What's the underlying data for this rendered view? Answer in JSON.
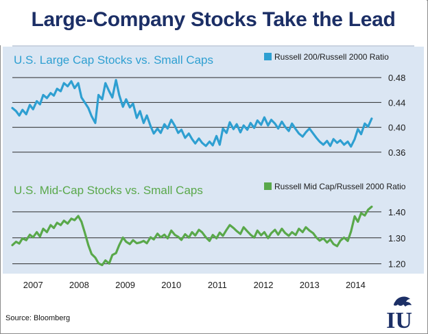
{
  "title": "Large-Company Stocks Take the Lead",
  "source": "Source: Bloomberg",
  "logo": "IU",
  "colors": {
    "title": "#1c2f66",
    "series_top": "#2e9fd1",
    "series_bottom": "#59a84a",
    "panel_bg": "#dbe6f3",
    "gridline": "#2a2a2a"
  },
  "chart_data": [
    {
      "type": "line",
      "title": "U.S. Large Cap Stocks vs. Small Caps",
      "legend": "Russell 200/Russell 2000 Ratio",
      "legend_position": "top-right",
      "x_tick_labels": [
        "2007",
        "2008",
        "2009",
        "2010",
        "2011",
        "2012",
        "2013",
        "2014"
      ],
      "x_range": [
        2006.55,
        2014.5
      ],
      "ylim": [
        0.34,
        0.49
      ],
      "y_ticks": [
        0.36,
        0.4,
        0.44,
        0.48
      ],
      "y_tick_labels": [
        "0.36",
        "0.40",
        "0.44",
        "0.48"
      ],
      "grid": "horizontal",
      "series": [
        {
          "x": [
            2006.55,
            2006.63,
            2006.7,
            2006.77,
            2006.85,
            2006.93,
            2007.0,
            2007.08,
            2007.15,
            2007.22,
            2007.3,
            2007.38,
            2007.45,
            2007.52,
            2007.6,
            2007.67,
            2007.75,
            2007.83,
            2007.9,
            2007.98,
            2008.05,
            2008.12,
            2008.2,
            2008.27,
            2008.35,
            2008.42,
            2008.5,
            2008.57,
            2008.65,
            2008.72,
            2008.8,
            2008.87,
            2008.95,
            2009.02,
            2009.1,
            2009.17,
            2009.25,
            2009.32,
            2009.4,
            2009.47,
            2009.55,
            2009.62,
            2009.7,
            2009.77,
            2009.85,
            2009.92,
            2010.0,
            2010.08,
            2010.15,
            2010.22,
            2010.3,
            2010.38,
            2010.45,
            2010.52,
            2010.6,
            2010.67,
            2010.75,
            2010.83,
            2010.9,
            2010.98,
            2011.05,
            2011.12,
            2011.2,
            2011.27,
            2011.35,
            2011.42,
            2011.5,
            2011.57,
            2011.65,
            2011.72,
            2011.8,
            2011.87,
            2011.95,
            2012.02,
            2012.1,
            2012.17,
            2012.25,
            2012.32,
            2012.4,
            2012.47,
            2012.55,
            2012.62,
            2012.7,
            2012.77,
            2012.85,
            2012.92,
            2013.0,
            2013.08,
            2013.15,
            2013.22,
            2013.3,
            2013.38,
            2013.45,
            2013.52,
            2013.6,
            2013.67,
            2013.75,
            2013.83,
            2013.9,
            2013.98,
            2014.05,
            2014.12,
            2014.2,
            2014.27,
            2014.35
          ],
          "values": [
            0.431,
            0.426,
            0.419,
            0.428,
            0.421,
            0.436,
            0.429,
            0.442,
            0.437,
            0.452,
            0.447,
            0.455,
            0.451,
            0.462,
            0.458,
            0.471,
            0.466,
            0.474,
            0.463,
            0.471,
            0.448,
            0.44,
            0.431,
            0.418,
            0.407,
            0.452,
            0.445,
            0.471,
            0.458,
            0.448,
            0.476,
            0.452,
            0.433,
            0.445,
            0.432,
            0.438,
            0.415,
            0.426,
            0.407,
            0.419,
            0.402,
            0.39,
            0.398,
            0.391,
            0.405,
            0.398,
            0.412,
            0.402,
            0.391,
            0.396,
            0.383,
            0.39,
            0.381,
            0.374,
            0.382,
            0.375,
            0.37,
            0.377,
            0.371,
            0.386,
            0.372,
            0.398,
            0.391,
            0.408,
            0.397,
            0.405,
            0.392,
            0.403,
            0.396,
            0.407,
            0.399,
            0.411,
            0.404,
            0.416,
            0.403,
            0.412,
            0.406,
            0.398,
            0.409,
            0.401,
            0.394,
            0.406,
            0.397,
            0.39,
            0.385,
            0.392,
            0.398,
            0.39,
            0.383,
            0.377,
            0.372,
            0.378,
            0.37,
            0.381,
            0.375,
            0.379,
            0.372,
            0.377,
            0.369,
            0.381,
            0.397,
            0.389,
            0.406,
            0.401,
            0.414
          ]
        }
      ]
    },
    {
      "type": "line",
      "title": "U.S. Mid-Cap Stocks vs. Small Caps",
      "legend": "Russell Mid Cap/Russell 2000 Ratio",
      "legend_position": "top-right",
      "x_tick_labels": [
        "2007",
        "2008",
        "2009",
        "2010",
        "2011",
        "2012",
        "2013",
        "2014"
      ],
      "x_range": [
        2006.55,
        2014.5
      ],
      "ylim": [
        1.17,
        1.45
      ],
      "y_ticks": [
        1.2,
        1.3,
        1.4
      ],
      "y_tick_labels": [
        "1.20",
        "1.30",
        "1.40"
      ],
      "grid": "horizontal",
      "series": [
        {
          "x": [
            2006.55,
            2006.63,
            2006.7,
            2006.77,
            2006.85,
            2006.93,
            2007.0,
            2007.08,
            2007.15,
            2007.22,
            2007.3,
            2007.38,
            2007.45,
            2007.52,
            2007.6,
            2007.67,
            2007.75,
            2007.83,
            2007.9,
            2007.98,
            2008.05,
            2008.12,
            2008.2,
            2008.27,
            2008.35,
            2008.42,
            2008.5,
            2008.57,
            2008.65,
            2008.72,
            2008.8,
            2008.87,
            2008.95,
            2009.02,
            2009.1,
            2009.17,
            2009.25,
            2009.32,
            2009.4,
            2009.47,
            2009.55,
            2009.62,
            2009.7,
            2009.77,
            2009.85,
            2009.92,
            2010.0,
            2010.08,
            2010.15,
            2010.22,
            2010.3,
            2010.38,
            2010.45,
            2010.52,
            2010.6,
            2010.67,
            2010.75,
            2010.83,
            2010.9,
            2010.98,
            2011.05,
            2011.12,
            2011.2,
            2011.27,
            2011.35,
            2011.42,
            2011.5,
            2011.57,
            2011.65,
            2011.72,
            2011.8,
            2011.87,
            2011.95,
            2012.02,
            2012.1,
            2012.17,
            2012.25,
            2012.32,
            2012.4,
            2012.47,
            2012.55,
            2012.62,
            2012.7,
            2012.77,
            2012.85,
            2012.92,
            2013.0,
            2013.08,
            2013.15,
            2013.22,
            2013.3,
            2013.38,
            2013.45,
            2013.52,
            2013.6,
            2013.67,
            2013.75,
            2013.83,
            2013.9,
            2013.98,
            2014.05,
            2014.12,
            2014.2,
            2014.27,
            2014.35
          ],
          "values": [
            1.272,
            1.285,
            1.278,
            1.298,
            1.291,
            1.312,
            1.302,
            1.322,
            1.305,
            1.335,
            1.322,
            1.349,
            1.338,
            1.358,
            1.349,
            1.366,
            1.355,
            1.374,
            1.368,
            1.384,
            1.362,
            1.321,
            1.272,
            1.238,
            1.224,
            1.202,
            1.195,
            1.213,
            1.201,
            1.234,
            1.241,
            1.272,
            1.301,
            1.285,
            1.276,
            1.291,
            1.279,
            1.282,
            1.288,
            1.279,
            1.302,
            1.294,
            1.316,
            1.302,
            1.312,
            1.298,
            1.328,
            1.311,
            1.304,
            1.292,
            1.314,
            1.301,
            1.322,
            1.309,
            1.331,
            1.321,
            1.302,
            1.288,
            1.311,
            1.298,
            1.32,
            1.308,
            1.331,
            1.349,
            1.338,
            1.326,
            1.315,
            1.341,
            1.325,
            1.312,
            1.301,
            1.328,
            1.31,
            1.322,
            1.299,
            1.318,
            1.331,
            1.312,
            1.335,
            1.319,
            1.308,
            1.322,
            1.311,
            1.335,
            1.322,
            1.341,
            1.328,
            1.318,
            1.301,
            1.289,
            1.298,
            1.282,
            1.294,
            1.276,
            1.268,
            1.289,
            1.301,
            1.288,
            1.324,
            1.383,
            1.362,
            1.395,
            1.386,
            1.408,
            1.42
          ]
        }
      ]
    }
  ]
}
